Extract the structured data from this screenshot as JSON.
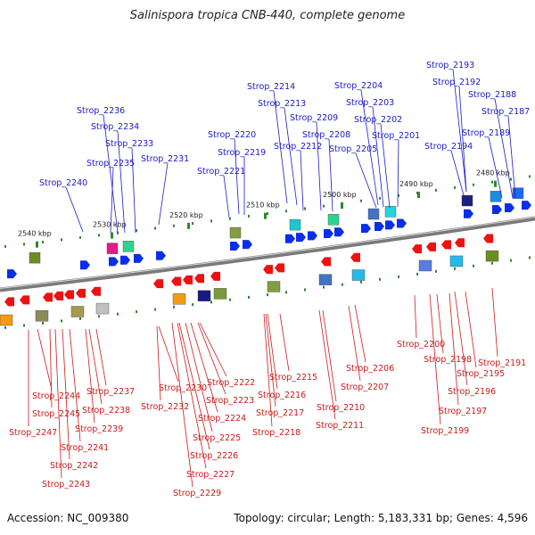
{
  "title": "Salinispora tropica CNB-440, complete genome",
  "footer": {
    "accession": "Accession: NC_009380",
    "info": "Topology: circular; Length: 5,183,331 bp; Genes: 4,596"
  },
  "colors": {
    "forward_label": "#1a1acc",
    "reverse_label": "#cc1a1a",
    "forward_arrow": "#0a2ee8",
    "reverse_arrow": "#ee1111",
    "backbone": "#7a7a7a"
  },
  "kbp_labels": [
    "2540 kbp",
    "2530 kbp",
    "2520 kbp",
    "2510 kbp",
    "2500 kbp",
    "2490 kbp",
    "2480 kbp"
  ],
  "forward_genes": [
    "Strop_2193",
    "Strop_2192",
    "Strop_2188",
    "Strop_2187",
    "Strop_2214",
    "Strop_2204",
    "Strop_2203",
    "Strop_2213",
    "Strop_2236",
    "Strop_2209",
    "Strop_2202",
    "Strop_2234",
    "Strop_2189",
    "Strop_2201",
    "Strop_2220",
    "Strop_2208",
    "Strop_2233",
    "Strop_2212",
    "Strop_2194",
    "Strop_2219",
    "Strop_2205",
    "Strop_2231",
    "Strop_2235",
    "Strop_2221",
    "Strop_2240"
  ],
  "reverse_genes": [
    "Strop_2200",
    "Strop_2191",
    "Strop_2198",
    "Strop_2206",
    "Strop_2195",
    "Strop_2215",
    "Strop_2196",
    "Strop_2207",
    "Strop_2237",
    "Strop_2222",
    "Strop_2230",
    "Strop_2244",
    "Strop_2216",
    "Strop_2223",
    "Strop_2210",
    "Strop_2232",
    "Strop_2238",
    "Strop_2197",
    "Strop_2245",
    "Strop_2217",
    "Strop_2224",
    "Strop_2211",
    "Strop_2239",
    "Strop_2247",
    "Strop_2218",
    "Strop_2199",
    "Strop_2225",
    "Strop_2241",
    "Strop_2226",
    "Strop_2242",
    "Strop_2227",
    "Strop_2243",
    "Strop_2229"
  ]
}
